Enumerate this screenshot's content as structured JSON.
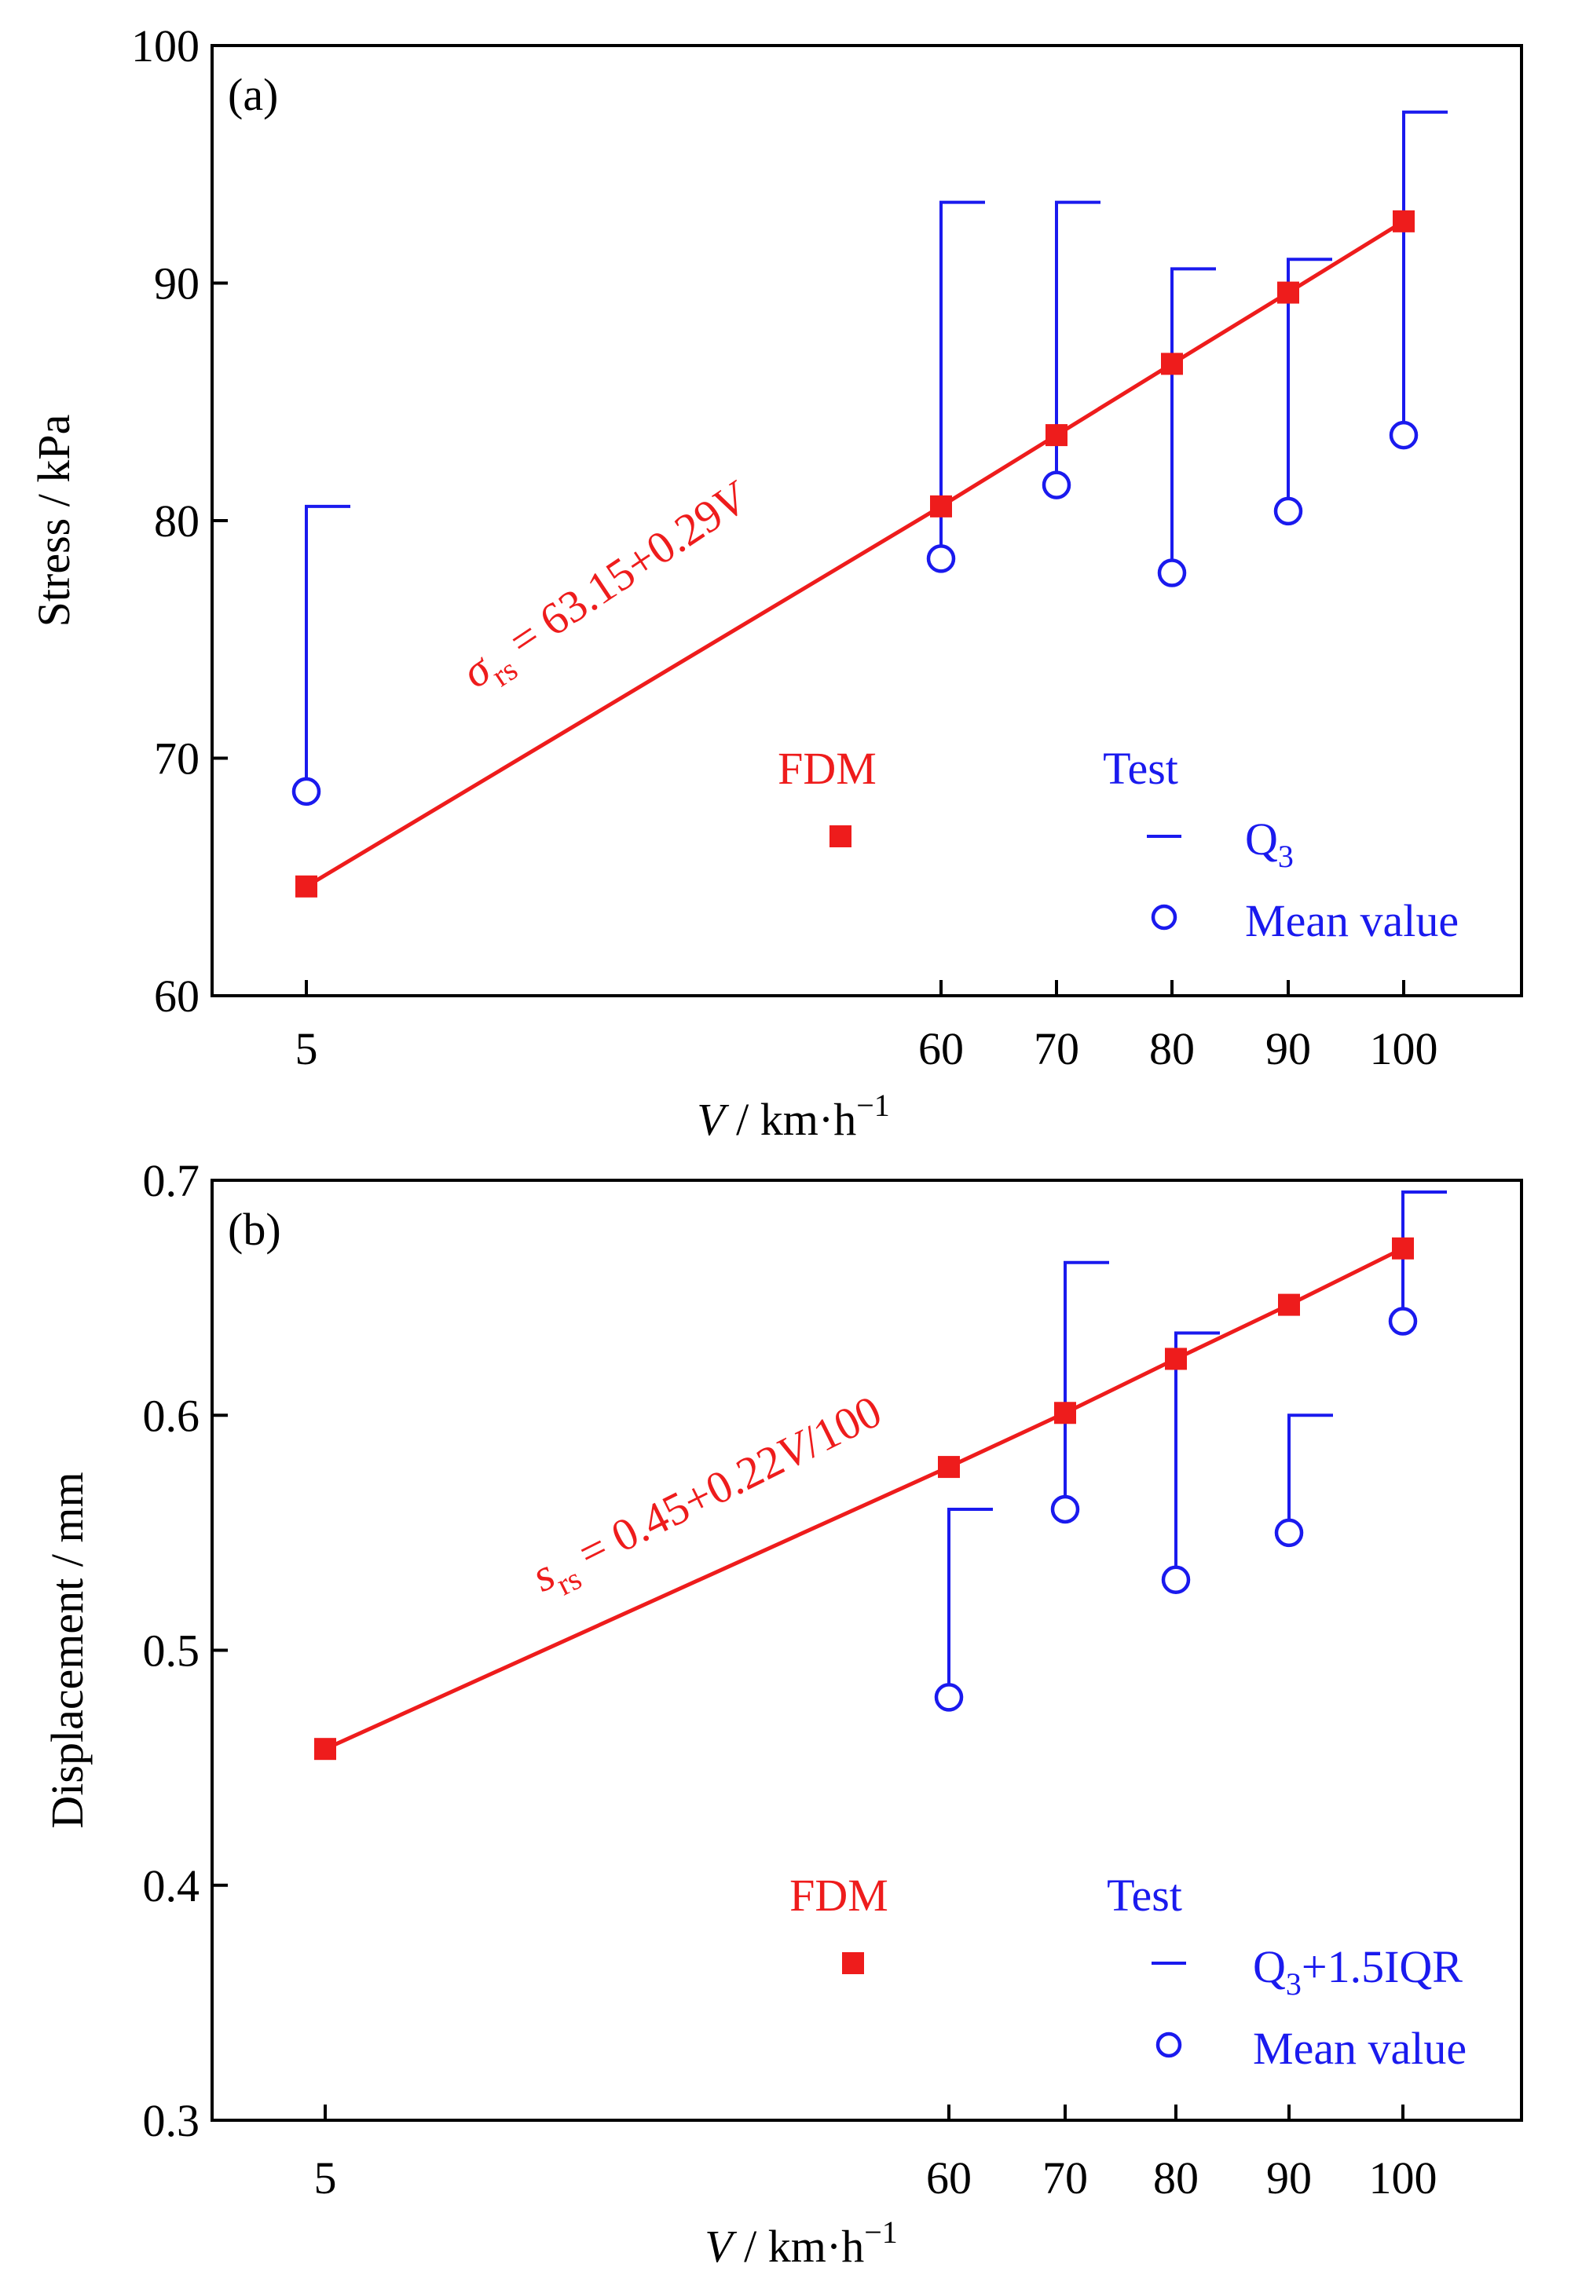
{
  "colors": {
    "fdm": "#ee1c1c",
    "test": "#1a1aee",
    "axis": "#000000"
  },
  "chart_data": [
    {
      "type": "scatter",
      "panel_label": "(a)",
      "ylabel": "Stress / kPa",
      "xlabel": {
        "var": "V",
        "rest": " / km·h",
        "sup": "−1"
      },
      "ylim": [
        60,
        100
      ],
      "yticks": [
        60,
        70,
        80,
        90,
        100
      ],
      "ytick_labels": [
        "60",
        "70",
        "80",
        "90",
        "100"
      ],
      "x_categories": [
        "5",
        "60",
        "70",
        "80",
        "90",
        "100"
      ],
      "series": [
        {
          "name": "FDM",
          "kind": "line-square",
          "x": [
            "5",
            "60",
            "70",
            "80",
            "90",
            "100"
          ],
          "values": [
            64.6,
            80.6,
            83.6,
            86.6,
            89.6,
            92.6
          ]
        },
        {
          "name": "Test — Mean value",
          "kind": "circle",
          "x": [
            "5",
            "60",
            "70",
            "80",
            "90",
            "100"
          ],
          "values": [
            68.6,
            78.4,
            81.5,
            77.8,
            80.4,
            83.6
          ]
        },
        {
          "name": "Test — Q3",
          "kind": "cap",
          "x": [
            "5",
            "60",
            "70",
            "80",
            "90",
            "100"
          ],
          "values": [
            80.6,
            93.4,
            93.4,
            90.6,
            91.0,
            97.2
          ]
        }
      ],
      "equation": {
        "sym": "σ",
        "sub": "rs",
        "rest": " = 63.15+0.29",
        "var": "V"
      },
      "legend": {
        "fdm_title": "FDM",
        "test_title": "Test",
        "cap_label": "Q",
        "cap_sub": "3",
        "cap_suffix": "",
        "mean_label": "Mean value"
      }
    },
    {
      "type": "scatter",
      "panel_label": "(b)",
      "ylabel": "Displacement / mm",
      "xlabel": {
        "var": "V",
        "rest": " / km·h",
        "sup": "−1"
      },
      "ylim": [
        0.3,
        0.7
      ],
      "yticks": [
        0.3,
        0.4,
        0.5,
        0.6,
        0.7
      ],
      "ytick_labels": [
        "0.3",
        "0.4",
        "0.5",
        "0.6",
        "0.7"
      ],
      "x_categories": [
        "5",
        "60",
        "70",
        "80",
        "90",
        "100"
      ],
      "series": [
        {
          "name": "FDM",
          "kind": "line-square",
          "x": [
            "5",
            "60",
            "70",
            "80",
            "90",
            "100"
          ],
          "values": [
            0.458,
            0.578,
            0.601,
            0.624,
            0.647,
            0.671
          ]
        },
        {
          "name": "Test — Mean value",
          "kind": "circle",
          "x": [
            "60",
            "70",
            "80",
            "90",
            "100"
          ],
          "values": [
            0.48,
            0.56,
            0.53,
            0.55,
            0.64
          ]
        },
        {
          "name": "Test — Q3+1.5IQR",
          "kind": "cap",
          "x": [
            "60",
            "70",
            "80",
            "90",
            "100"
          ],
          "values": [
            0.56,
            0.665,
            0.635,
            0.6,
            0.695
          ]
        }
      ],
      "equation": {
        "sym": "s",
        "sub": "rs",
        "rest": " = 0.45+0.22",
        "var": "V",
        "tail": "/100"
      },
      "legend": {
        "fdm_title": "FDM",
        "test_title": "Test",
        "cap_label": "Q",
        "cap_sub": "3",
        "cap_suffix": "+1.5IQR",
        "mean_label": "Mean value"
      }
    }
  ]
}
